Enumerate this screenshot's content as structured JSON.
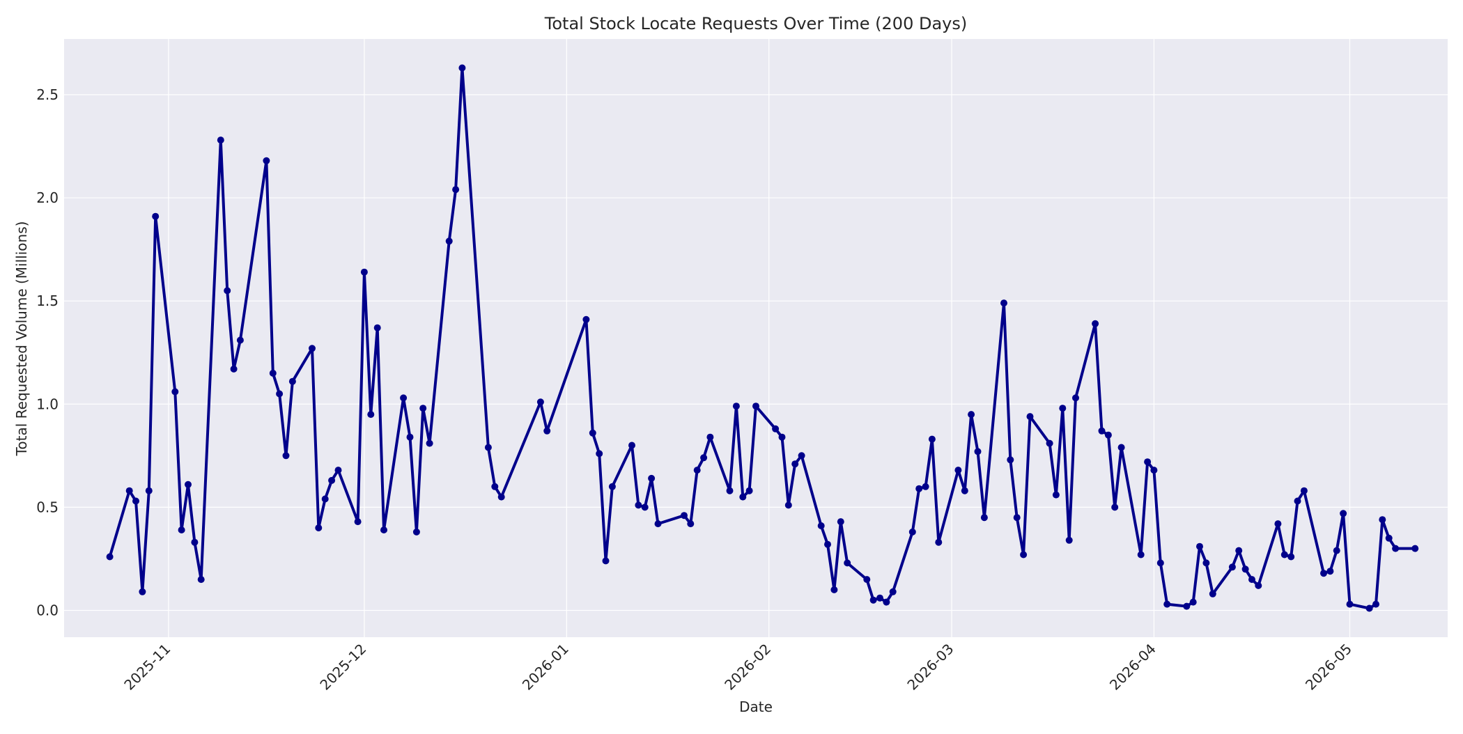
{
  "chart_data": {
    "type": "line",
    "title": "Total Stock Locate Requests Over Time (200 Days)",
    "xlabel": "Date",
    "ylabel": "Total Requested Volume (Millions)",
    "xlim": [
      "2025-10-16",
      "2026-05-16"
    ],
    "ylim": [
      -0.13,
      2.77
    ],
    "x_ticks": [
      "2025-11",
      "2025-12",
      "2026-01",
      "2026-02",
      "2026-03",
      "2026-04",
      "2026-05"
    ],
    "y_ticks": [
      "0.0",
      "0.5",
      "1.0",
      "1.5",
      "2.0",
      "2.5"
    ],
    "grid": true,
    "colors": {
      "line": "#00008b",
      "background": "#eaeaf2",
      "grid": "#ffffff"
    },
    "series": [
      {
        "x": [
          "2025-10-23",
          "2025-10-26",
          "2025-10-27",
          "2025-10-28",
          "2025-10-29",
          "2025-10-30",
          "2025-11-02",
          "2025-11-03",
          "2025-11-04",
          "2025-11-05",
          "2025-11-06",
          "2025-11-09",
          "2025-11-10",
          "2025-11-11",
          "2025-11-12",
          "2025-11-16",
          "2025-11-17",
          "2025-11-18",
          "2025-11-19",
          "2025-11-20",
          "2025-11-23",
          "2025-11-24",
          "2025-11-25",
          "2025-11-26",
          "2025-11-27",
          "2025-11-30",
          "2025-12-01",
          "2025-12-02",
          "2025-12-03",
          "2025-12-04",
          "2025-12-07",
          "2025-12-08",
          "2025-12-09",
          "2025-12-10",
          "2025-12-11",
          "2025-12-14",
          "2025-12-15",
          "2025-12-16",
          "2025-12-20",
          "2025-12-21",
          "2025-12-22",
          "2025-12-28",
          "2025-12-29",
          "2026-01-04",
          "2026-01-05",
          "2026-01-06",
          "2026-01-07",
          "2026-01-08",
          "2026-01-11",
          "2026-01-12",
          "2026-01-13",
          "2026-01-14",
          "2026-01-15",
          "2026-01-19",
          "2026-01-20",
          "2026-01-21",
          "2026-01-22",
          "2026-01-23",
          "2026-01-26",
          "2026-01-27",
          "2026-01-28",
          "2026-01-29",
          "2026-01-30",
          "2026-02-02",
          "2026-02-03",
          "2026-02-04",
          "2026-02-05",
          "2026-02-06",
          "2026-02-09",
          "2026-02-10",
          "2026-02-11",
          "2026-02-12",
          "2026-02-13",
          "2026-02-16",
          "2026-02-17",
          "2026-02-18",
          "2026-02-19",
          "2026-02-20",
          "2026-02-23",
          "2026-02-24",
          "2026-02-25",
          "2026-02-26",
          "2026-02-27",
          "2026-03-02",
          "2026-03-03",
          "2026-03-04",
          "2026-03-05",
          "2026-03-06",
          "2026-03-09",
          "2026-03-10",
          "2026-03-11",
          "2026-03-12",
          "2026-03-13",
          "2026-03-16",
          "2026-03-17",
          "2026-03-18",
          "2026-03-19",
          "2026-03-20",
          "2026-03-23",
          "2026-03-24",
          "2026-03-25",
          "2026-03-26",
          "2026-03-27",
          "2026-03-30",
          "2026-03-31",
          "2026-04-01",
          "2026-04-02",
          "2026-04-03",
          "2026-04-06",
          "2026-04-07",
          "2026-04-08",
          "2026-04-09",
          "2026-04-10",
          "2026-04-13",
          "2026-04-14",
          "2026-04-15",
          "2026-04-16",
          "2026-04-17",
          "2026-04-20",
          "2026-04-21",
          "2026-04-22",
          "2026-04-23",
          "2026-04-24",
          "2026-04-27",
          "2026-04-28",
          "2026-04-29",
          "2026-04-30",
          "2026-05-01",
          "2026-05-04",
          "2026-05-05",
          "2026-05-06",
          "2026-05-07",
          "2026-05-08",
          "2026-05-11"
        ],
        "y": [
          0.26,
          0.58,
          0.53,
          0.09,
          0.58,
          1.91,
          1.06,
          0.39,
          0.61,
          0.33,
          0.15,
          2.28,
          1.55,
          1.17,
          1.31,
          2.18,
          1.15,
          1.05,
          0.75,
          1.11,
          1.27,
          0.4,
          0.54,
          0.63,
          0.68,
          0.43,
          1.64,
          0.95,
          1.37,
          0.39,
          1.03,
          0.84,
          0.38,
          0.98,
          0.81,
          1.79,
          2.04,
          2.63,
          0.79,
          0.6,
          0.55,
          1.01,
          0.87,
          1.41,
          0.86,
          0.76,
          0.24,
          0.6,
          0.8,
          0.51,
          0.5,
          0.64,
          0.42,
          0.46,
          0.42,
          0.68,
          0.74,
          0.84,
          0.58,
          0.99,
          0.55,
          0.58,
          0.99,
          0.88,
          0.84,
          0.51,
          0.71,
          0.75,
          0.41,
          0.32,
          0.1,
          0.43,
          0.23,
          0.15,
          0.05,
          0.06,
          0.04,
          0.09,
          0.38,
          0.59,
          0.6,
          0.83,
          0.33,
          0.68,
          0.58,
          0.95,
          0.77,
          0.45,
          1.49,
          0.73,
          0.45,
          0.27,
          0.94,
          0.81,
          0.56,
          0.98,
          0.34,
          1.03,
          1.39,
          0.87,
          0.85,
          0.5,
          0.79,
          0.27,
          0.72,
          0.68,
          0.23,
          0.03,
          0.02,
          0.04,
          0.31,
          0.23,
          0.08,
          0.21,
          0.29,
          0.2,
          0.15,
          0.12,
          0.42,
          0.27,
          0.26,
          0.53,
          0.58,
          0.18,
          0.19,
          0.29,
          0.47,
          0.03,
          0.01,
          0.03,
          0.44,
          0.35,
          0.3,
          0.3
        ]
      }
    ]
  }
}
